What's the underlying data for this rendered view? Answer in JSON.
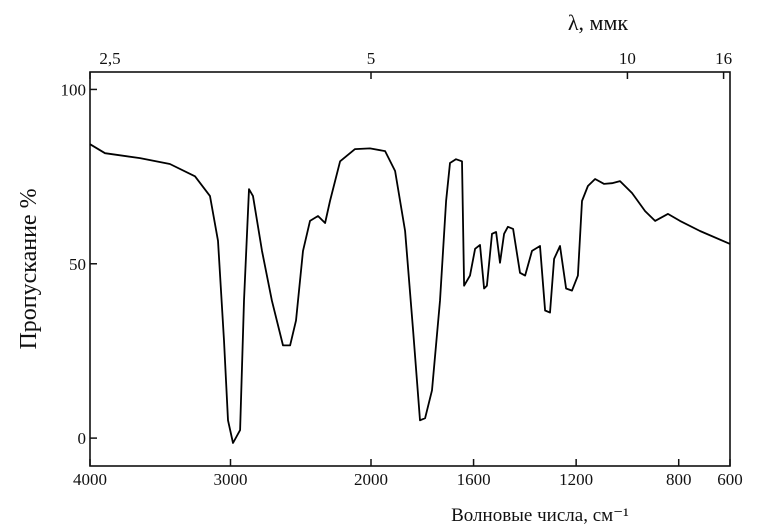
{
  "chart_data": {
    "type": "line",
    "x_axis_label": "Волновые числа, см⁻¹",
    "y_axis_label": "Пропускание %",
    "x2_axis_label": "λ, ммк",
    "xlim": [
      4000,
      600
    ],
    "x_scale_change": 2000,
    "xticks": [
      4000,
      3000,
      2000,
      1600,
      1200,
      800,
      600
    ],
    "x2ticks": [
      {
        "value": 2.5,
        "label": "2,5"
      },
      5,
      10,
      16
    ],
    "ylim": [
      -8,
      105
    ],
    "yticks": [
      0,
      50,
      100
    ],
    "series": [
      {
        "name": "spectrum",
        "color": "#000000",
        "x": [
          4000,
          3893,
          3644,
          3431,
          3253,
          3146,
          3089,
          3046,
          3018,
          2982,
          2932,
          2904,
          2868,
          2840,
          2776,
          2705,
          2626,
          2576,
          2534,
          2484,
          2434,
          2377,
          2327,
          2292,
          2220,
          2114,
          2007,
          1945,
          1906,
          1867,
          1836,
          1809,
          1789,
          1762,
          1731,
          1707,
          1692,
          1669,
          1645,
          1637,
          1614,
          1594,
          1575,
          1559,
          1548,
          1528,
          1512,
          1497,
          1481,
          1466,
          1446,
          1419,
          1399,
          1372,
          1341,
          1321,
          1302,
          1286,
          1263,
          1239,
          1216,
          1193,
          1177,
          1154,
          1126,
          1091,
          1060,
          1029,
          982,
          931,
          892,
          842,
          795,
          717,
          600
        ],
        "values": [
          84.3,
          81.7,
          80.3,
          78.6,
          75.1,
          69.4,
          56.6,
          28,
          5.1,
          -1.4,
          2.3,
          39.4,
          71.4,
          69.4,
          53.7,
          39.4,
          26.6,
          26.6,
          33.7,
          53.7,
          62.3,
          63.7,
          61.7,
          68,
          79.4,
          82.9,
          83.1,
          82.3,
          76.6,
          59.4,
          30.9,
          5.1,
          5.7,
          13.7,
          39.4,
          68,
          78.9,
          80,
          79.4,
          43.7,
          46.6,
          54.3,
          55.4,
          42.9,
          43.7,
          58.6,
          59.1,
          50.3,
          58.6,
          60.6,
          60,
          47.4,
          46.6,
          53.7,
          55.1,
          36.6,
          36,
          51.4,
          55.1,
          42.9,
          42.3,
          46.6,
          68,
          72.3,
          74.3,
          72.9,
          73.1,
          73.7,
          70.3,
          65.1,
          62.3,
          64.3,
          62.3,
          59.4,
          55.7
        ]
      }
    ]
  }
}
